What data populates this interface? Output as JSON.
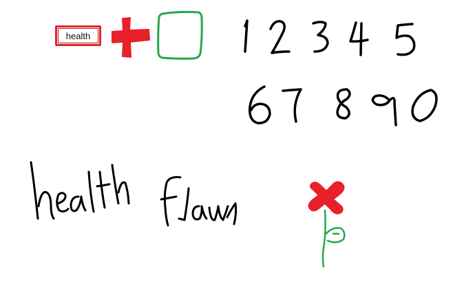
{
  "label": {
    "text": "health"
  },
  "handwriting": {
    "numbers_row_1": "12345",
    "numbers_row_2": "67890",
    "word_1": "health",
    "word_2": "flower"
  },
  "colors": {
    "red": "#e8202a",
    "green": "#22a94a",
    "ink": "#000000"
  },
  "icons": [
    "health-label-icon",
    "red-cross-icon",
    "green-square-icon",
    "flower-icon"
  ]
}
